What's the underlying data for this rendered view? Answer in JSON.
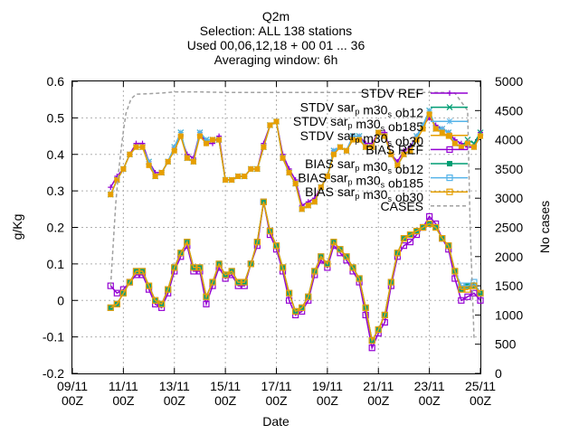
{
  "chart_data": {
    "type": "line",
    "title": "Q2m",
    "subtitle": [
      "Selection: ALL    138 stations",
      "Used 00,06,12,18 + 00 01 ... 36",
      "Averaging window:  6h"
    ],
    "xlabel": "Date",
    "ylabel": "g/Kg",
    "y2label": "No cases",
    "xlim": [
      0,
      16
    ],
    "ylim": [
      -0.2,
      0.6
    ],
    "y2lim": [
      0,
      5000
    ],
    "x_tick_values": [
      0,
      2,
      4,
      6,
      8,
      10,
      12,
      14,
      16
    ],
    "x_ticks": [
      {
        "top": "09/11",
        "bottom": "00Z"
      },
      {
        "top": "11/11",
        "bottom": "00Z"
      },
      {
        "top": "13/11",
        "bottom": "00Z"
      },
      {
        "top": "15/11",
        "bottom": "00Z"
      },
      {
        "top": "17/11",
        "bottom": "00Z"
      },
      {
        "top": "19/11",
        "bottom": "00Z"
      },
      {
        "top": "21/11",
        "bottom": "00Z"
      },
      {
        "top": "23/11",
        "bottom": "00Z"
      },
      {
        "top": "25/11",
        "bottom": "00Z"
      }
    ],
    "y_ticks": [
      -0.2,
      -0.1,
      0,
      0.1,
      0.2,
      0.3,
      0.4,
      0.5,
      0.6
    ],
    "y_tick_labels": [
      "-0.2",
      "-0.1",
      "0",
      "0.1",
      "0.2",
      "0.3",
      "0.4",
      "0.5",
      "0.6"
    ],
    "y2_ticks": [
      0,
      500,
      1000,
      1500,
      2000,
      2500,
      3000,
      3500,
      4000,
      4500,
      5000
    ],
    "grid": true,
    "legend_position": "top-right",
    "x": [
      1.5,
      1.75,
      2,
      2.25,
      2.5,
      2.75,
      3,
      3.25,
      3.5,
      3.75,
      4,
      4.25,
      4.5,
      4.75,
      5,
      5.25,
      5.5,
      5.75,
      6,
      6.25,
      6.5,
      6.75,
      7,
      7.25,
      7.5,
      7.75,
      8,
      8.25,
      8.5,
      8.75,
      9,
      9.25,
      9.5,
      9.75,
      10,
      10.25,
      10.5,
      10.75,
      11,
      11.25,
      11.5,
      11.75,
      12,
      12.25,
      12.5,
      12.75,
      13,
      13.25,
      13.5,
      13.75,
      14,
      14.25,
      14.5,
      14.75,
      15,
      15.25,
      15.5,
      15.75,
      16
    ],
    "series": [
      {
        "name": "STDV REF",
        "marker": "plus",
        "color": "#9400d3",
        "axis": "y",
        "values": [
          0.31,
          0.34,
          0.36,
          0.4,
          0.43,
          0.43,
          0.38,
          0.35,
          0.35,
          0.38,
          0.42,
          0.45,
          0.4,
          0.39,
          0.46,
          0.43,
          0.43,
          0.45,
          0.33,
          0.33,
          0.34,
          0.34,
          0.36,
          0.36,
          0.43,
          0.48,
          0.49,
          0.4,
          0.36,
          0.33,
          0.26,
          0.27,
          0.28,
          0.31,
          0.34,
          0.41,
          0.42,
          0.41,
          0.45,
          0.45,
          0.43,
          0.43,
          0.46,
          0.46,
          0.4,
          0.38,
          0.41,
          0.42,
          0.45,
          0.48,
          0.5,
          0.48,
          0.47,
          0.46,
          0.44,
          0.43,
          0.42,
          0.42,
          0.46
        ]
      },
      {
        "name": "STDV sar_p m30_s ob12",
        "marker": "cross",
        "color": "#009e73",
        "axis": "y",
        "values": [
          0.29,
          0.33,
          0.36,
          0.4,
          0.42,
          0.42,
          0.38,
          0.34,
          0.35,
          0.38,
          0.42,
          0.46,
          0.39,
          0.38,
          0.46,
          0.44,
          0.44,
          0.44,
          0.33,
          0.33,
          0.34,
          0.34,
          0.36,
          0.36,
          0.42,
          0.48,
          0.49,
          0.39,
          0.35,
          0.32,
          0.25,
          0.26,
          0.27,
          0.31,
          0.34,
          0.41,
          0.42,
          0.41,
          0.45,
          0.45,
          0.42,
          0.42,
          0.46,
          0.45,
          0.4,
          0.37,
          0.4,
          0.41,
          0.45,
          0.48,
          0.52,
          0.47,
          0.47,
          0.46,
          0.43,
          0.42,
          0.44,
          0.43,
          0.46
        ]
      },
      {
        "name": "STDV sar_p m30_s ob185",
        "marker": "star",
        "color": "#56b4e9",
        "axis": "y",
        "values": [
          0.29,
          0.33,
          0.36,
          0.4,
          0.42,
          0.42,
          0.38,
          0.34,
          0.35,
          0.38,
          0.42,
          0.46,
          0.39,
          0.38,
          0.46,
          0.44,
          0.44,
          0.44,
          0.33,
          0.33,
          0.34,
          0.34,
          0.36,
          0.36,
          0.42,
          0.48,
          0.49,
          0.39,
          0.35,
          0.32,
          0.25,
          0.26,
          0.27,
          0.31,
          0.34,
          0.41,
          0.42,
          0.41,
          0.45,
          0.45,
          0.42,
          0.42,
          0.46,
          0.45,
          0.4,
          0.37,
          0.4,
          0.41,
          0.45,
          0.48,
          0.52,
          0.47,
          0.47,
          0.46,
          0.43,
          0.42,
          0.43,
          0.42,
          0.45
        ]
      },
      {
        "name": "STDV sar_p m30_s ob30",
        "marker": "square",
        "color": "#e69f00",
        "axis": "y",
        "values": [
          0.29,
          0.33,
          0.36,
          0.4,
          0.42,
          0.42,
          0.37,
          0.34,
          0.35,
          0.38,
          0.41,
          0.45,
          0.39,
          0.38,
          0.45,
          0.43,
          0.44,
          0.44,
          0.33,
          0.33,
          0.34,
          0.34,
          0.36,
          0.36,
          0.42,
          0.48,
          0.49,
          0.39,
          0.35,
          0.32,
          0.25,
          0.26,
          0.27,
          0.31,
          0.34,
          0.4,
          0.42,
          0.41,
          0.44,
          0.44,
          0.42,
          0.42,
          0.46,
          0.45,
          0.4,
          0.37,
          0.4,
          0.41,
          0.44,
          0.47,
          0.51,
          0.47,
          0.46,
          0.45,
          0.43,
          0.42,
          0.43,
          0.42,
          0.45
        ]
      },
      {
        "name": "BIAS REF",
        "marker": "open-square",
        "color": "#9400d3",
        "axis": "y",
        "values": [
          0.04,
          0.02,
          0.03,
          0.05,
          0.07,
          0.07,
          0.03,
          -0.01,
          -0.02,
          0.02,
          0.08,
          0.12,
          0.15,
          0.08,
          0.08,
          -0.01,
          0.04,
          0.09,
          0.06,
          0.07,
          0.04,
          0.04,
          0.1,
          0.15,
          0.27,
          0.18,
          0.14,
          0.08,
          0.0,
          -0.04,
          -0.03,
          0.0,
          0.07,
          0.11,
          0.09,
          0.15,
          0.13,
          0.11,
          0.08,
          0.05,
          -0.04,
          -0.13,
          -0.09,
          -0.06,
          0.04,
          0.12,
          0.15,
          0.16,
          0.18,
          0.2,
          0.23,
          0.21,
          0.17,
          0.14,
          0.06,
          0.0,
          0.01,
          0.02,
          0.0
        ]
      },
      {
        "name": "BIAS sar_p m30_s ob12",
        "marker": "filled-square",
        "color": "#009e73",
        "axis": "y",
        "values": [
          -0.02,
          -0.01,
          0.02,
          0.05,
          0.08,
          0.08,
          0.04,
          0.0,
          -0.01,
          0.03,
          0.09,
          0.13,
          0.16,
          0.09,
          0.09,
          0.01,
          0.05,
          0.1,
          0.07,
          0.08,
          0.05,
          0.05,
          0.1,
          0.16,
          0.27,
          0.19,
          0.15,
          0.09,
          0.02,
          -0.03,
          -0.02,
          0.01,
          0.08,
          0.12,
          0.1,
          0.16,
          0.14,
          0.12,
          0.09,
          0.06,
          -0.02,
          -0.11,
          -0.08,
          -0.04,
          0.05,
          0.13,
          0.17,
          0.18,
          0.19,
          0.2,
          0.21,
          0.2,
          0.17,
          0.15,
          0.08,
          0.03,
          0.04,
          0.04,
          0.02
        ]
      },
      {
        "name": "BIAS sar_p m30_s ob185",
        "marker": "open-square",
        "color": "#56b4e9",
        "axis": "y",
        "values": [
          -0.02,
          -0.01,
          0.02,
          0.05,
          0.08,
          0.08,
          0.04,
          0.0,
          -0.01,
          0.03,
          0.09,
          0.13,
          0.16,
          0.09,
          0.09,
          0.01,
          0.05,
          0.1,
          0.07,
          0.08,
          0.05,
          0.05,
          0.1,
          0.16,
          0.27,
          0.19,
          0.15,
          0.09,
          0.02,
          -0.03,
          -0.02,
          0.01,
          0.08,
          0.12,
          0.1,
          0.16,
          0.14,
          0.12,
          0.09,
          0.06,
          -0.02,
          -0.11,
          -0.08,
          -0.04,
          0.05,
          0.13,
          0.17,
          0.18,
          0.19,
          0.2,
          0.21,
          0.2,
          0.17,
          0.15,
          0.08,
          0.04,
          0.04,
          0.05,
          0.02
        ]
      },
      {
        "name": "BIAS sar_p m30_s ob30",
        "marker": "open-square",
        "color": "#e69f00",
        "axis": "y",
        "values": [
          -0.02,
          -0.01,
          0.02,
          0.05,
          0.08,
          0.08,
          0.04,
          0.0,
          -0.01,
          0.03,
          0.09,
          0.13,
          0.16,
          0.09,
          0.09,
          0.01,
          0.05,
          0.1,
          0.07,
          0.08,
          0.05,
          0.05,
          0.1,
          0.16,
          0.27,
          0.19,
          0.15,
          0.09,
          0.02,
          -0.03,
          -0.02,
          0.01,
          0.08,
          0.12,
          0.1,
          0.16,
          0.14,
          0.12,
          0.09,
          0.06,
          -0.02,
          -0.11,
          -0.08,
          -0.04,
          0.05,
          0.13,
          0.17,
          0.18,
          0.19,
          0.2,
          0.21,
          0.2,
          0.17,
          0.15,
          0.08,
          0.03,
          0.03,
          0.04,
          0.02
        ]
      },
      {
        "name": "CASES",
        "marker": "none",
        "color": "#a0a0a0",
        "dash": true,
        "axis": "y2",
        "x": [
          1.5,
          1.6,
          1.7,
          1.8,
          1.9,
          2.0,
          2.1,
          2.3,
          2.5,
          3.0,
          3.5,
          4.0,
          5.0,
          6.0,
          7.0,
          8.0,
          9.0,
          10.0,
          11.0,
          12.0,
          13.0,
          14.0,
          14.5,
          15.0,
          15.5,
          15.6,
          15.75
        ],
        "values": [
          1500,
          2200,
          2900,
          3400,
          3800,
          4150,
          4450,
          4700,
          4780,
          4790,
          4800,
          4820,
          4820,
          4810,
          4810,
          4810,
          4810,
          4810,
          4810,
          4810,
          4810,
          4810,
          4810,
          4800,
          4500,
          2500,
          600
        ]
      }
    ]
  }
}
